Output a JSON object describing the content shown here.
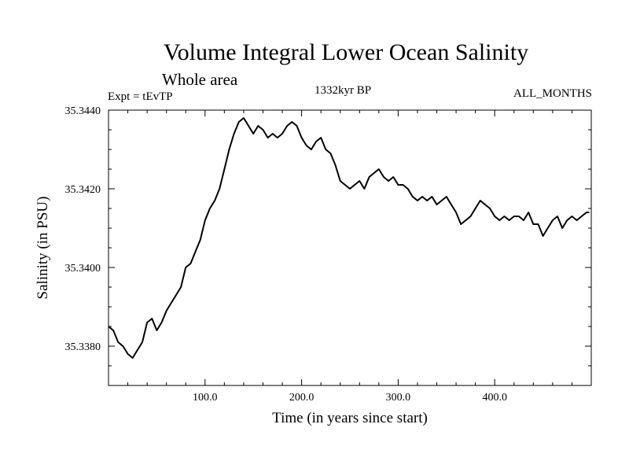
{
  "header": {
    "title": "Volume Integral Lower Ocean Salinity",
    "subtitle": "Whole area",
    "experiment": "Expt = tEvTP",
    "period": "1332kyr BP",
    "months": "ALL_MONTHS"
  },
  "chart_data": {
    "type": "line",
    "title": "Volume Integral Lower Ocean Salinity",
    "subtitle": "Whole area",
    "xlabel": "Time (in years since start)",
    "ylabel": "Salinity (in PSU)",
    "xlim": [
      0,
      500
    ],
    "ylim": [
      35.337,
      35.344
    ],
    "x_ticks": [
      100,
      200,
      300,
      400
    ],
    "x_tick_labels": [
      "100.0",
      "200.0",
      "300.0",
      "400.0"
    ],
    "y_ticks": [
      35.338,
      35.34,
      35.342,
      35.344
    ],
    "y_tick_labels": [
      "35.3380",
      "35.3400",
      "35.3420",
      "35.3440"
    ],
    "grid": false,
    "series": [
      {
        "name": "Volume integral lower ocean salinity",
        "x": [
          0,
          5,
          10,
          15,
          20,
          25,
          30,
          35,
          40,
          45,
          50,
          55,
          60,
          65,
          70,
          75,
          80,
          85,
          90,
          95,
          100,
          105,
          110,
          115,
          120,
          125,
          130,
          135,
          140,
          145,
          150,
          155,
          160,
          165,
          170,
          175,
          180,
          185,
          190,
          195,
          200,
          205,
          210,
          215,
          220,
          225,
          230,
          235,
          240,
          245,
          250,
          255,
          260,
          265,
          270,
          275,
          280,
          285,
          290,
          295,
          300,
          305,
          310,
          315,
          320,
          325,
          330,
          335,
          340,
          345,
          350,
          355,
          360,
          365,
          370,
          375,
          380,
          385,
          390,
          395,
          400,
          405,
          410,
          415,
          420,
          425,
          430,
          435,
          440,
          445,
          450,
          455,
          460,
          465,
          470,
          475,
          480,
          485,
          490,
          495,
          498
        ],
        "values": [
          35.3385,
          35.3384,
          35.3381,
          35.338,
          35.3378,
          35.3377,
          35.3379,
          35.3381,
          35.3386,
          35.3387,
          35.3384,
          35.3386,
          35.3389,
          35.3391,
          35.3393,
          35.3395,
          35.34,
          35.3401,
          35.3404,
          35.3407,
          35.3412,
          35.3415,
          35.3417,
          35.342,
          35.3425,
          35.343,
          35.3434,
          35.3437,
          35.3438,
          35.3436,
          35.3434,
          35.3436,
          35.3435,
          35.3433,
          35.3434,
          35.3433,
          35.3434,
          35.3436,
          35.3437,
          35.3436,
          35.3433,
          35.3431,
          35.343,
          35.3432,
          35.3433,
          35.343,
          35.3429,
          35.3426,
          35.3422,
          35.3421,
          35.342,
          35.3421,
          35.3422,
          35.342,
          35.3423,
          35.3424,
          35.3425,
          35.3423,
          35.3422,
          35.3423,
          35.3421,
          35.3421,
          35.342,
          35.3418,
          35.3417,
          35.3418,
          35.3417,
          35.3418,
          35.3416,
          35.3417,
          35.3418,
          35.3416,
          35.3414,
          35.3411,
          35.3412,
          35.3413,
          35.3415,
          35.3417,
          35.3416,
          35.3415,
          35.3413,
          35.3412,
          35.3413,
          35.3412,
          35.3413,
          35.3413,
          35.3412,
          35.3414,
          35.3411,
          35.3411,
          35.3408,
          35.341,
          35.3412,
          35.3413,
          35.341,
          35.3412,
          35.3413,
          35.3412,
          35.3413,
          35.3414,
          35.3414
        ]
      }
    ]
  }
}
